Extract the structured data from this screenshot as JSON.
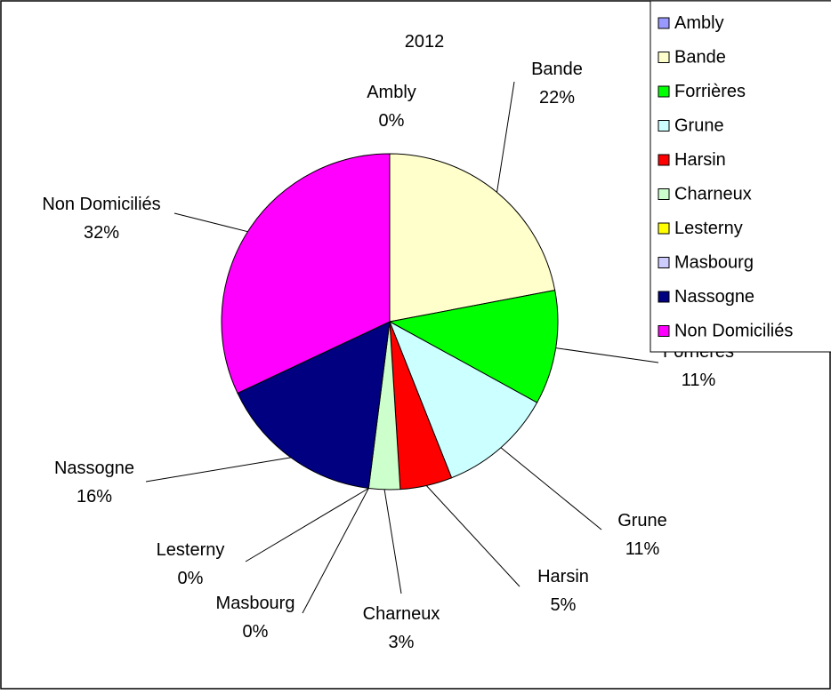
{
  "chart_data": {
    "type": "pie",
    "title": "2012",
    "categories": [
      "Ambly",
      "Bande",
      "Forrières",
      "Grune",
      "Harsin",
      "Charneux",
      "Lesterny",
      "Masbourg",
      "Nassogne",
      "Non Domiciliés"
    ],
    "values": [
      0,
      22,
      11,
      11,
      5,
      3,
      0,
      0,
      16,
      32
    ],
    "labels": [
      "0%",
      "22%",
      "11%",
      "11%",
      "5%",
      "3%",
      "0%",
      "0%",
      "16%",
      "32%"
    ],
    "colors": [
      "#9999ff",
      "#ffffcc",
      "#00ff00",
      "#ccffff",
      "#ff0000",
      "#ccffcc",
      "#ffff00",
      "#ccccff",
      "#000080",
      "#ff00ff"
    ],
    "legend_position": "top-right"
  }
}
